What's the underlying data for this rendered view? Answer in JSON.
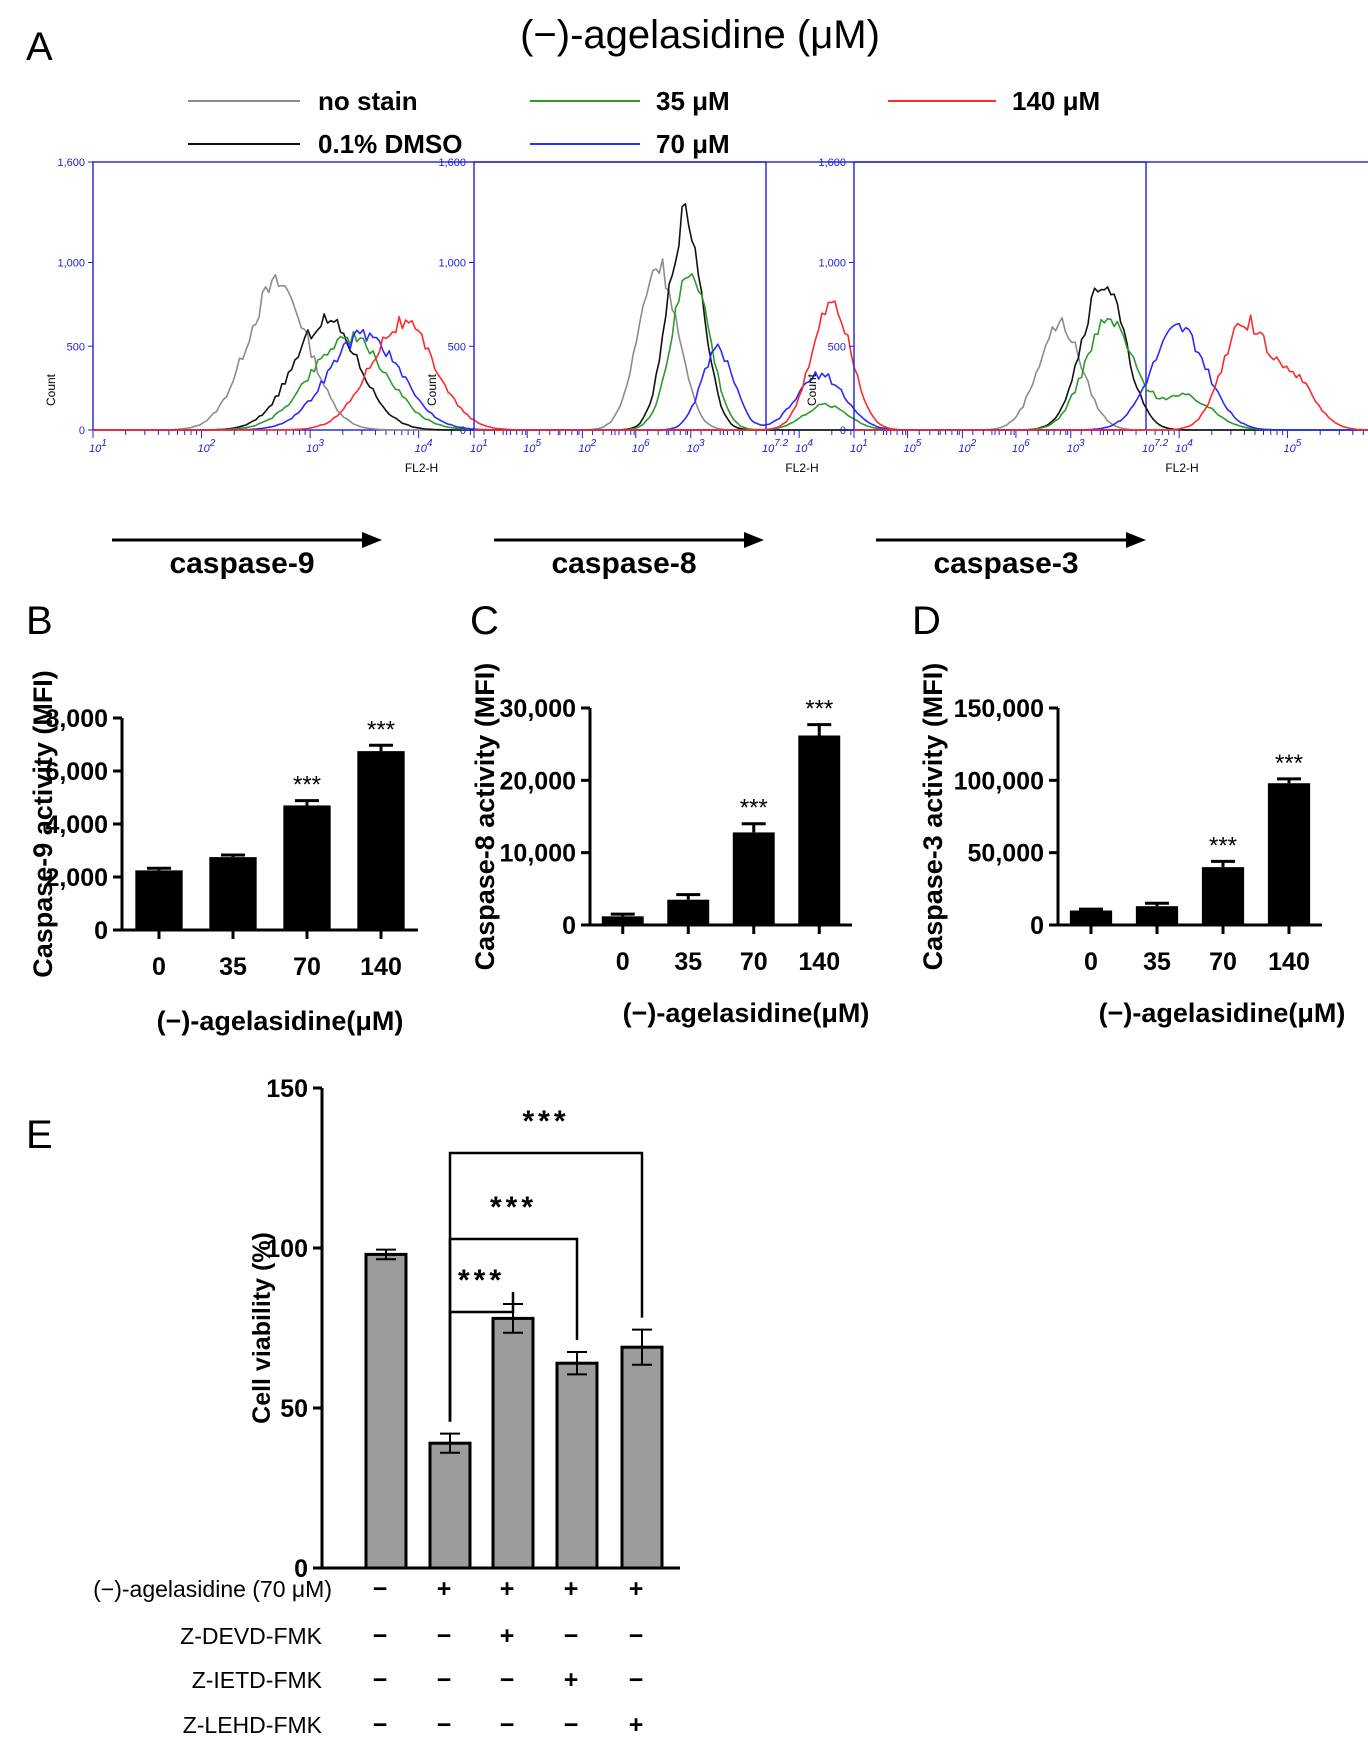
{
  "figure": {
    "title": "(−)-agelasidine  (μM)",
    "panel_labels": [
      "A",
      "B",
      "C",
      "D",
      "E"
    ]
  },
  "legend": [
    {
      "label": "no stain",
      "color": "#8c8c8c"
    },
    {
      "label": "0.1% DMSO",
      "color": "#111111"
    },
    {
      "label": "35 μM",
      "color": "#2e9a2e"
    },
    {
      "label": "70 μM",
      "color": "#2a2aff"
    },
    {
      "label": "140 μM",
      "color": "#ff2a2a"
    }
  ],
  "chart_data": [
    {
      "type": "line",
      "panel": "A",
      "marker_name": "caspase-9",
      "xlabel": "FL2-H",
      "ylabel": "Count",
      "yticks": [
        "0",
        "500",
        "1,000",
        "1,600"
      ],
      "ylim": [
        0,
        1600
      ],
      "xticks": [
        "10^1",
        "10^2",
        "10^3",
        "10^4",
        "10^5",
        "10^6",
        "10^7.2"
      ],
      "xlim_log": [
        1,
        7.2
      ],
      "series": [
        {
          "name": "no stain",
          "peaks": [
            {
              "x": 2.7,
              "y": 870,
              "w": 0.28
            }
          ]
        },
        {
          "name": "0.1% DMSO",
          "peaks": [
            {
              "x": 3.15,
              "y": 650,
              "w": 0.3
            }
          ]
        },
        {
          "name": "35 μM",
          "peaks": [
            {
              "x": 3.35,
              "y": 550,
              "w": 0.35
            }
          ]
        },
        {
          "name": "70 μM",
          "peaks": [
            {
              "x": 3.5,
              "y": 570,
              "w": 0.33
            }
          ]
        },
        {
          "name": "140 μM",
          "peaks": [
            {
              "x": 3.85,
              "y": 640,
              "w": 0.3
            }
          ]
        }
      ]
    },
    {
      "type": "line",
      "panel": "A",
      "marker_name": "caspase-8",
      "xlabel": "FL2-H",
      "ylabel": "Count",
      "yticks": [
        "0",
        "500",
        "1,000",
        "1,600"
      ],
      "ylim": [
        0,
        1600
      ],
      "xticks": [
        "10^1",
        "10^2",
        "10^3",
        "10^4",
        "10^5",
        "10^6",
        "10^7.2"
      ],
      "xlim_log": [
        1,
        7.2
      ],
      "series": [
        {
          "name": "no stain",
          "peaks": [
            {
              "x": 2.7,
              "y": 990,
              "w": 0.18
            }
          ]
        },
        {
          "name": "0.1% DMSO",
          "peaks": [
            {
              "x": 2.95,
              "y": 1270,
              "w": 0.16
            }
          ]
        },
        {
          "name": "35 μM",
          "peaks": [
            {
              "x": 3.0,
              "y": 950,
              "w": 0.17
            },
            {
              "x": 4.25,
              "y": 150,
              "w": 0.2
            }
          ]
        },
        {
          "name": "70 μM",
          "peaks": [
            {
              "x": 3.25,
              "y": 480,
              "w": 0.15
            },
            {
              "x": 4.2,
              "y": 330,
              "w": 0.22
            }
          ]
        },
        {
          "name": "140 μM",
          "peaks": [
            {
              "x": 4.3,
              "y": 780,
              "w": 0.18
            }
          ]
        }
      ]
    },
    {
      "type": "line",
      "panel": "A",
      "marker_name": "caspase-3",
      "xlabel": "FL2-H",
      "ylabel": "Count",
      "yticks": [
        "0",
        "500",
        "1,000",
        "1,600"
      ],
      "ylim": [
        0,
        1600
      ],
      "xticks": [
        "10^1",
        "10^2",
        "10^3",
        "10^4",
        "10^5",
        "10^6",
        "10^7.2"
      ],
      "xlim_log": [
        1,
        7.2
      ],
      "series": [
        {
          "name": "no stain",
          "peaks": [
            {
              "x": 2.9,
              "y": 630,
              "w": 0.2
            }
          ]
        },
        {
          "name": "0.1% DMSO",
          "peaks": [
            {
              "x": 3.3,
              "y": 880,
              "w": 0.2
            }
          ]
        },
        {
          "name": "35 μM",
          "peaks": [
            {
              "x": 3.35,
              "y": 650,
              "w": 0.22
            },
            {
              "x": 4.05,
              "y": 200,
              "w": 0.25
            }
          ]
        },
        {
          "name": "70 μM",
          "peaks": [
            {
              "x": 4.0,
              "y": 610,
              "w": 0.25
            }
          ]
        },
        {
          "name": "140 μM",
          "peaks": [
            {
              "x": 4.6,
              "y": 620,
              "w": 0.2
            },
            {
              "x": 5.05,
              "y": 300,
              "w": 0.2
            }
          ]
        }
      ]
    },
    {
      "type": "bar",
      "panel": "B",
      "categories": [
        "0",
        "35",
        "70",
        "140"
      ],
      "values": [
        2250,
        2750,
        4700,
        6750
      ],
      "errors": [
        80,
        80,
        180,
        220
      ],
      "significance": [
        "",
        "",
        "***",
        "***"
      ],
      "ylabel": "Caspase-9 activity (MFI)",
      "xlabel": "(−)-agelasidine(μM)",
      "ylim": [
        0,
        8000
      ],
      "yticks": [
        "0",
        "2,000",
        "4,000",
        "6,000",
        "8,000"
      ]
    },
    {
      "type": "bar",
      "panel": "C",
      "categories": [
        "0",
        "35",
        "70",
        "140"
      ],
      "values": [
        1200,
        3500,
        12800,
        26200
      ],
      "errors": [
        300,
        700,
        1200,
        1500
      ],
      "significance": [
        "",
        "",
        "***",
        "***"
      ],
      "ylabel": "Caspase-8 activity (MFI)",
      "xlabel": "(−)-agelasidine(μM)",
      "ylim": [
        0,
        30000
      ],
      "yticks": [
        "0",
        "10,000",
        "20,000",
        "30,000"
      ]
    },
    {
      "type": "bar",
      "panel": "D",
      "categories": [
        "0",
        "35",
        "70",
        "140"
      ],
      "values": [
        10000,
        13000,
        40000,
        98000
      ],
      "errors": [
        1000,
        2000,
        4000,
        3000
      ],
      "significance": [
        "",
        "",
        "***",
        "***"
      ],
      "ylabel": "Caspase-3 activity (MFI)",
      "xlabel": "(−)-agelasidine(μM)",
      "ylim": [
        0,
        150000
      ],
      "yticks": [
        "0",
        "50,000",
        "100,000",
        "150,000"
      ]
    },
    {
      "type": "bar",
      "panel": "E",
      "values": [
        98,
        39,
        78,
        64,
        69
      ],
      "errors": [
        1.5,
        3,
        4.5,
        3.5,
        5.5
      ],
      "ylabel": "Cell viability (%)",
      "ylim": [
        0,
        150
      ],
      "yticks": [
        "0",
        "50",
        "100",
        "150"
      ],
      "treatments": [
        {
          "label": "(−)-agelasidine (70 μM)",
          "signs": [
            "−",
            "+",
            "+",
            "+",
            "+"
          ]
        },
        {
          "label": "Z-DEVD-FMK",
          "signs": [
            "−",
            "−",
            "+",
            "−",
            "−"
          ]
        },
        {
          "label": "Z-IETD-FMK",
          "signs": [
            "−",
            "−",
            "−",
            "+",
            "−"
          ]
        },
        {
          "label": "Z-LEHD-FMK",
          "signs": [
            "−",
            "−",
            "−",
            "−",
            "+"
          ]
        }
      ],
      "comparisons": [
        {
          "from": 1,
          "to": 2,
          "label": "***"
        },
        {
          "from": 1,
          "to": 3,
          "label": "***"
        },
        {
          "from": 1,
          "to": 4,
          "label": "***"
        }
      ]
    }
  ]
}
